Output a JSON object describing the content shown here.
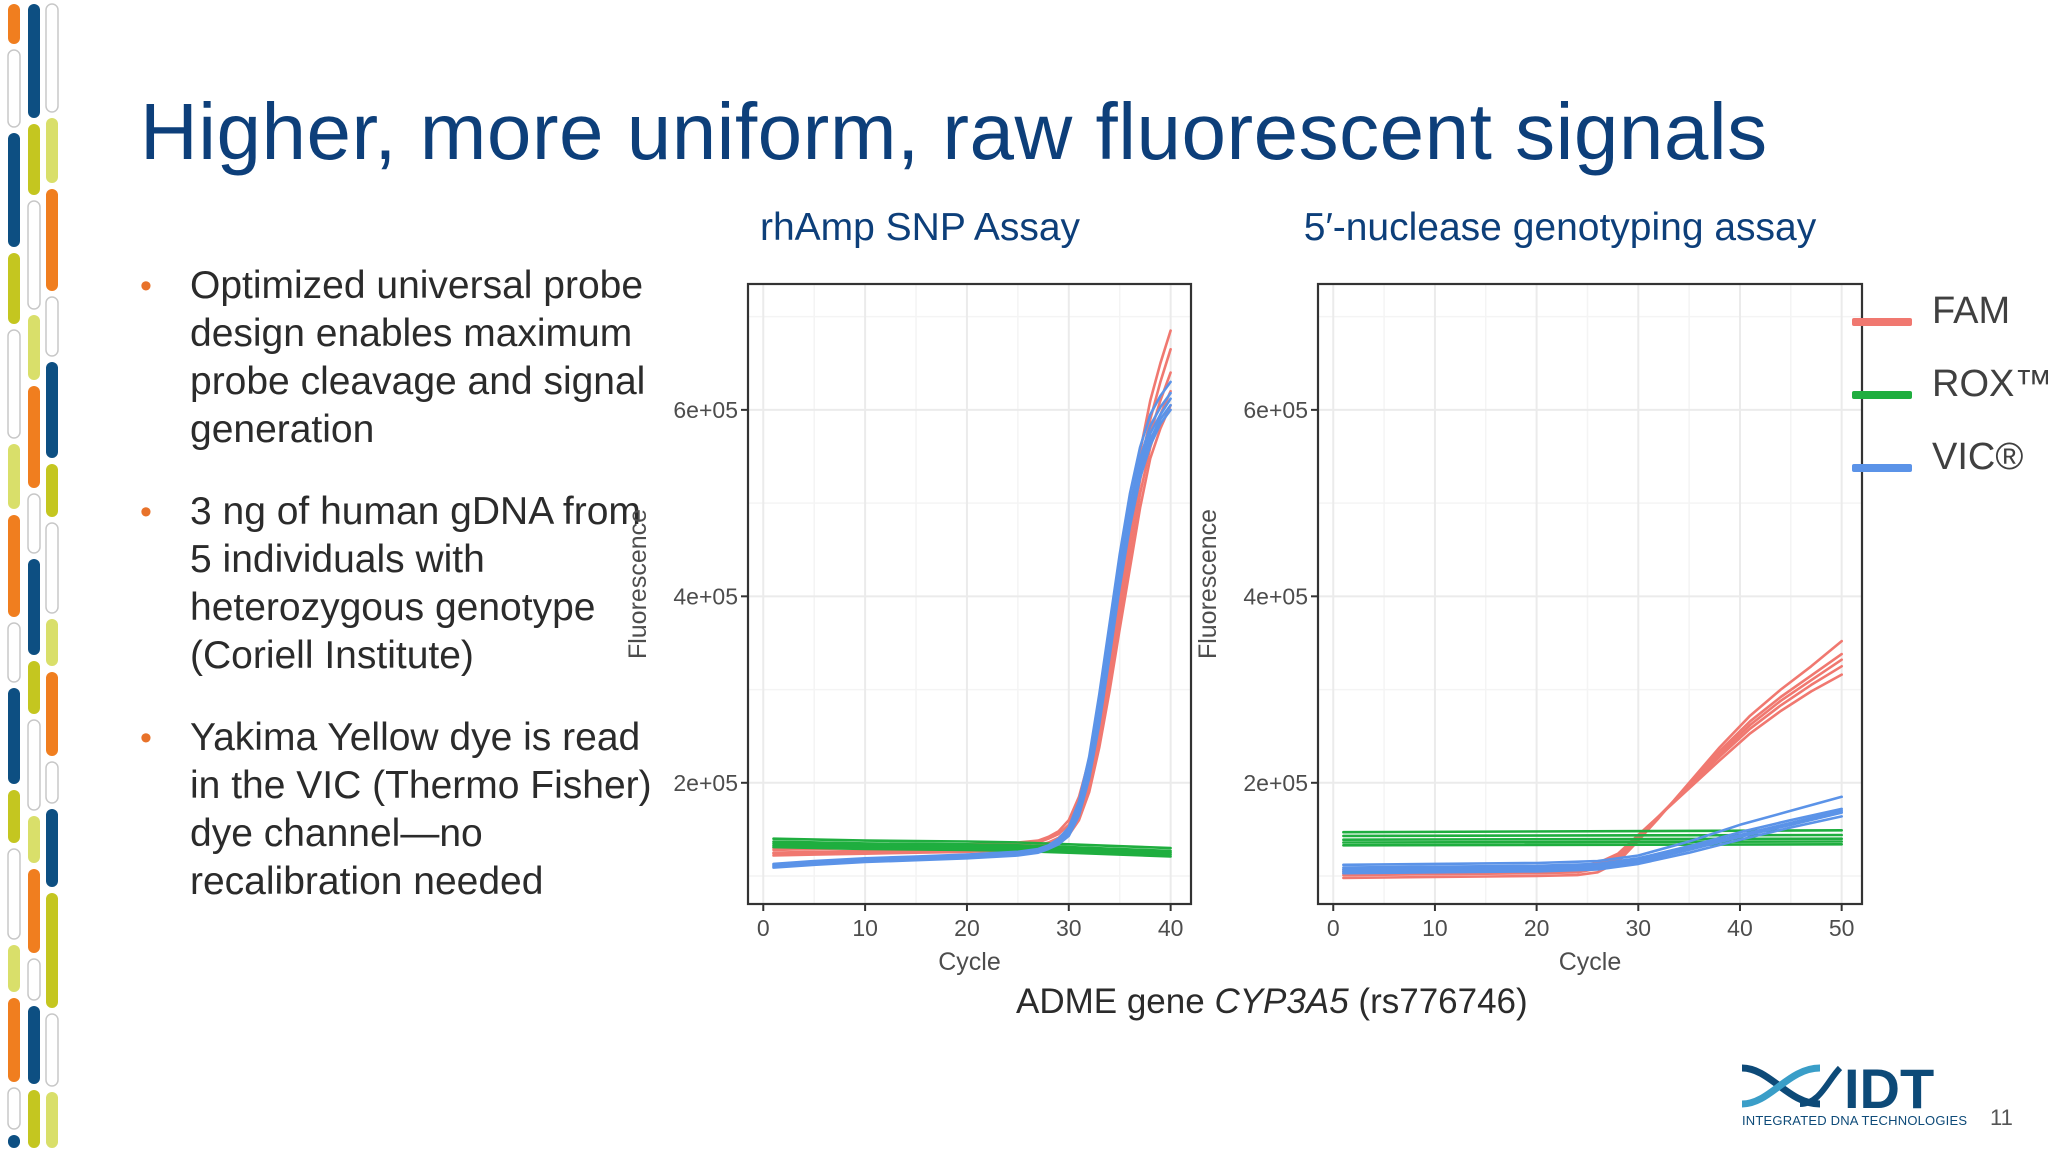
{
  "slide": {
    "title": "Higher, more uniform, raw fluorescent signals",
    "bullets": [
      "Optimized universal probe design enables maximum probe cleavage and signal generation",
      "3 ng of human gDNA from 5 individuals with heterozygous genotype (Coriell Institute)",
      "Yakima Yellow dye is read in the VIC (Thermo Fisher) dye channel—no recalibration needed"
    ],
    "caption_prefix": "ADME gene ",
    "caption_gene": "CYP3A5",
    "caption_suffix": " (rs776746)",
    "page_number": "11",
    "logo_text": "IDT",
    "logo_subtext": "INTEGRATED DNA TECHNOLOGIES",
    "bullet_glyph": "•"
  },
  "legend": [
    {
      "name": "FAM",
      "color": "#f07870"
    },
    {
      "name": "ROX™",
      "color": "#1fae3f"
    },
    {
      "name": "VIC®",
      "color": "#5b93e8"
    }
  ],
  "colors": {
    "title": "#0d3f7a",
    "bullet": "#e8722a",
    "FAM": "#f07870",
    "ROX": "#1fae3f",
    "VIC": "#5b93e8",
    "grid": "#ebebeb"
  },
  "chart_data": [
    {
      "type": "line",
      "title": "rhAmp SNP Assay",
      "xlabel": "Cycle",
      "ylabel": "Fluorescence",
      "xlim": [
        -1.5,
        42
      ],
      "ylim": [
        70000,
        735000
      ],
      "xticks": [
        0,
        10,
        20,
        30,
        40
      ],
      "yticks": [
        200000,
        400000,
        600000
      ],
      "ytick_labels": [
        "2e+05",
        "4e+05",
        "6e+05"
      ],
      "grid": true,
      "series": [
        {
          "name": "FAM",
          "color": "#f07870",
          "x": [
            1,
            5,
            10,
            15,
            20,
            25,
            27,
            28,
            29,
            30,
            31,
            32,
            33,
            34,
            35,
            36,
            37,
            38,
            39,
            40
          ],
          "y": [
            130000,
            131000,
            132000,
            133000,
            134000,
            136000,
            138000,
            142000,
            148000,
            160000,
            185000,
            225000,
            285000,
            350000,
            420000,
            490000,
            555000,
            610000,
            650000,
            685000
          ]
        },
        {
          "name": "FAM",
          "color": "#f07870",
          "x": [
            1,
            5,
            10,
            15,
            20,
            25,
            27,
            28,
            29,
            30,
            31,
            32,
            33,
            34,
            35,
            36,
            37,
            38,
            39,
            40
          ],
          "y": [
            128000,
            129000,
            130000,
            131000,
            132000,
            134000,
            136000,
            140000,
            145000,
            155000,
            178000,
            215000,
            270000,
            335000,
            405000,
            475000,
            540000,
            590000,
            630000,
            665000
          ]
        },
        {
          "name": "FAM",
          "color": "#f07870",
          "x": [
            1,
            5,
            10,
            15,
            20,
            25,
            27,
            28,
            29,
            30,
            31,
            32,
            33,
            34,
            35,
            36,
            37,
            38,
            39,
            40
          ],
          "y": [
            125000,
            126000,
            127000,
            128000,
            129000,
            131000,
            133000,
            136000,
            141000,
            150000,
            170000,
            205000,
            258000,
            322000,
            392000,
            460000,
            525000,
            575000,
            610000,
            640000
          ]
        },
        {
          "name": "FAM",
          "color": "#f07870",
          "x": [
            1,
            5,
            10,
            15,
            20,
            25,
            27,
            28,
            29,
            30,
            31,
            32,
            33,
            34,
            35,
            36,
            37,
            38,
            39,
            40
          ],
          "y": [
            124000,
            125000,
            126000,
            127000,
            128000,
            130000,
            132000,
            135000,
            139000,
            147000,
            165000,
            198000,
            248000,
            310000,
            378000,
            445000,
            510000,
            560000,
            595000,
            620000
          ]
        },
        {
          "name": "FAM",
          "color": "#f07870",
          "x": [
            1,
            5,
            10,
            15,
            20,
            25,
            27,
            28,
            29,
            30,
            31,
            32,
            33,
            34,
            35,
            36,
            37,
            38,
            39,
            40
          ],
          "y": [
            122000,
            123000,
            124000,
            125000,
            126000,
            128000,
            130000,
            133000,
            137000,
            144000,
            160000,
            190000,
            238000,
            298000,
            365000,
            430000,
            495000,
            548000,
            580000,
            605000
          ]
        },
        {
          "name": "ROX™",
          "color": "#1fae3f",
          "x": [
            1,
            10,
            20,
            25,
            30,
            35,
            40
          ],
          "y": [
            140000,
            138000,
            137000,
            136000,
            134000,
            132000,
            130000
          ]
        },
        {
          "name": "ROX™",
          "color": "#1fae3f",
          "x": [
            1,
            10,
            20,
            25,
            30,
            35,
            40
          ],
          "y": [
            137000,
            135000,
            134000,
            133000,
            131000,
            129000,
            127000
          ]
        },
        {
          "name": "ROX™",
          "color": "#1fae3f",
          "x": [
            1,
            10,
            20,
            25,
            30,
            35,
            40
          ],
          "y": [
            135000,
            133000,
            132000,
            131000,
            129000,
            127000,
            125000
          ]
        },
        {
          "name": "ROX™",
          "color": "#1fae3f",
          "x": [
            1,
            10,
            20,
            25,
            30,
            35,
            40
          ],
          "y": [
            133000,
            131000,
            130000,
            129000,
            127000,
            125000,
            123000
          ]
        },
        {
          "name": "ROX™",
          "color": "#1fae3f",
          "x": [
            1,
            10,
            20,
            25,
            30,
            35,
            40
          ],
          "y": [
            131000,
            129000,
            128000,
            127000,
            125000,
            123000,
            121000
          ]
        },
        {
          "name": "VIC®",
          "color": "#5b93e8",
          "x": [
            1,
            5,
            10,
            15,
            20,
            25,
            27,
            28,
            29,
            30,
            31,
            32,
            33,
            34,
            35,
            36,
            37,
            38,
            39,
            40
          ],
          "y": [
            113000,
            116000,
            119000,
            121000,
            123000,
            126000,
            129000,
            133000,
            140000,
            152000,
            180000,
            228000,
            295000,
            370000,
            445000,
            510000,
            560000,
            595000,
            615000,
            630000
          ]
        },
        {
          "name": "VIC®",
          "color": "#5b93e8",
          "x": [
            1,
            5,
            10,
            15,
            20,
            25,
            27,
            28,
            29,
            30,
            31,
            32,
            33,
            34,
            35,
            36,
            37,
            38,
            39,
            40
          ],
          "y": [
            112000,
            115000,
            118000,
            120000,
            122000,
            125000,
            128000,
            132000,
            138000,
            149000,
            175000,
            220000,
            285000,
            358000,
            432000,
            498000,
            548000,
            583000,
            603000,
            618000
          ]
        },
        {
          "name": "VIC®",
          "color": "#5b93e8",
          "x": [
            1,
            5,
            10,
            15,
            20,
            25,
            27,
            28,
            29,
            30,
            31,
            32,
            33,
            34,
            35,
            36,
            37,
            38,
            39,
            40
          ],
          "y": [
            111000,
            114000,
            117000,
            119000,
            121000,
            124000,
            127000,
            131000,
            137000,
            147000,
            172000,
            215000,
            278000,
            350000,
            425000,
            490000,
            540000,
            575000,
            595000,
            612000
          ]
        },
        {
          "name": "VIC®",
          "color": "#5b93e8",
          "x": [
            1,
            5,
            10,
            15,
            20,
            25,
            27,
            28,
            29,
            30,
            31,
            32,
            33,
            34,
            35,
            36,
            37,
            38,
            39,
            40
          ],
          "y": [
            110000,
            113000,
            116000,
            118000,
            120000,
            123000,
            126000,
            130000,
            135000,
            145000,
            168000,
            210000,
            270000,
            342000,
            418000,
            482000,
            533000,
            568000,
            590000,
            605000
          ]
        },
        {
          "name": "VIC®",
          "color": "#5b93e8",
          "x": [
            1,
            5,
            10,
            15,
            20,
            25,
            27,
            28,
            29,
            30,
            31,
            32,
            33,
            34,
            35,
            36,
            37,
            38,
            39,
            40
          ],
          "y": [
            109000,
            112000,
            115000,
            117000,
            119000,
            122000,
            125000,
            129000,
            134000,
            143000,
            165000,
            205000,
            263000,
            335000,
            410000,
            475000,
            527000,
            562000,
            585000,
            600000
          ]
        }
      ]
    },
    {
      "type": "line",
      "title": "5′-nuclease genotyping assay",
      "xlabel": "Cycle",
      "ylabel": "Fluorescence",
      "xlim": [
        -1.5,
        52
      ],
      "ylim": [
        70000,
        735000
      ],
      "xticks": [
        0,
        10,
        20,
        30,
        40,
        50
      ],
      "yticks": [
        200000,
        400000,
        600000
      ],
      "ytick_labels": [
        "2e+05",
        "4e+05",
        "6e+05"
      ],
      "grid": true,
      "series": [
        {
          "name": "FAM",
          "color": "#f07870",
          "x": [
            1,
            10,
            20,
            24,
            26,
            28,
            30,
            32,
            35,
            38,
            41,
            44,
            47,
            50
          ],
          "y": [
            98000,
            99000,
            100000,
            101000,
            104000,
            115000,
            138000,
            162000,
            200000,
            238000,
            272000,
            300000,
            325000,
            352000
          ]
        },
        {
          "name": "FAM",
          "color": "#f07870",
          "x": [
            1,
            10,
            20,
            24,
            26,
            28,
            30,
            32,
            35,
            38,
            41,
            44,
            47,
            50
          ],
          "y": [
            101000,
            102000,
            103000,
            104000,
            108000,
            118000,
            140000,
            163000,
            198000,
            234000,
            266000,
            292000,
            315000,
            338000
          ]
        },
        {
          "name": "FAM",
          "color": "#f07870",
          "x": [
            1,
            10,
            20,
            24,
            26,
            28,
            30,
            32,
            35,
            38,
            41,
            44,
            47,
            50
          ],
          "y": [
            103000,
            104000,
            105000,
            106000,
            110000,
            120000,
            142000,
            164000,
            197000,
            231000,
            262000,
            288000,
            310000,
            332000
          ]
        },
        {
          "name": "FAM",
          "color": "#f07870",
          "x": [
            1,
            10,
            20,
            24,
            26,
            28,
            30,
            32,
            35,
            38,
            41,
            44,
            47,
            50
          ],
          "y": [
            105000,
            106000,
            107000,
            108000,
            112000,
            122000,
            143000,
            164000,
            196000,
            228000,
            258000,
            283000,
            305000,
            325000
          ]
        },
        {
          "name": "FAM",
          "color": "#f07870",
          "x": [
            1,
            10,
            20,
            24,
            26,
            28,
            30,
            32,
            35,
            38,
            41,
            44,
            47,
            50
          ],
          "y": [
            107000,
            108000,
            109000,
            110000,
            114000,
            124000,
            144000,
            164000,
            194000,
            224000,
            253000,
            277000,
            298000,
            316000
          ]
        },
        {
          "name": "ROX™",
          "color": "#1fae3f",
          "x": [
            1,
            50
          ],
          "y": [
            147000,
            149000
          ]
        },
        {
          "name": "ROX™",
          "color": "#1fae3f",
          "x": [
            1,
            50
          ],
          "y": [
            143000,
            144000
          ]
        },
        {
          "name": "ROX™",
          "color": "#1fae3f",
          "x": [
            1,
            50
          ],
          "y": [
            139000,
            140000
          ]
        },
        {
          "name": "ROX™",
          "color": "#1fae3f",
          "x": [
            1,
            50
          ],
          "y": [
            136000,
            137000
          ]
        },
        {
          "name": "ROX™",
          "color": "#1fae3f",
          "x": [
            1,
            50
          ],
          "y": [
            133000,
            134000
          ]
        },
        {
          "name": "VIC®",
          "color": "#5b93e8",
          "x": [
            1,
            10,
            20,
            26,
            30,
            35,
            40,
            45,
            50
          ],
          "y": [
            112000,
            113000,
            114000,
            116000,
            122000,
            137000,
            155000,
            170000,
            185000
          ]
        },
        {
          "name": "VIC®",
          "color": "#5b93e8",
          "x": [
            1,
            10,
            20,
            26,
            30,
            35,
            40,
            45,
            50
          ],
          "y": [
            109000,
            110000,
            111000,
            113000,
            119000,
            132000,
            147000,
            160000,
            172000
          ]
        },
        {
          "name": "VIC®",
          "color": "#5b93e8",
          "x": [
            1,
            10,
            20,
            26,
            30,
            35,
            40,
            45,
            50
          ],
          "y": [
            107000,
            108000,
            109000,
            111000,
            117000,
            130000,
            144000,
            157000,
            170000
          ]
        },
        {
          "name": "VIC®",
          "color": "#5b93e8",
          "x": [
            1,
            10,
            20,
            26,
            30,
            35,
            40,
            45,
            50
          ],
          "y": [
            105000,
            106000,
            107000,
            109000,
            115000,
            128000,
            142000,
            155000,
            168000
          ]
        },
        {
          "name": "VIC®",
          "color": "#5b93e8",
          "x": [
            1,
            10,
            20,
            26,
            30,
            35,
            40,
            45,
            50
          ],
          "y": [
            103000,
            104000,
            105000,
            107000,
            113000,
            125000,
            139000,
            152000,
            164000
          ]
        }
      ]
    }
  ]
}
